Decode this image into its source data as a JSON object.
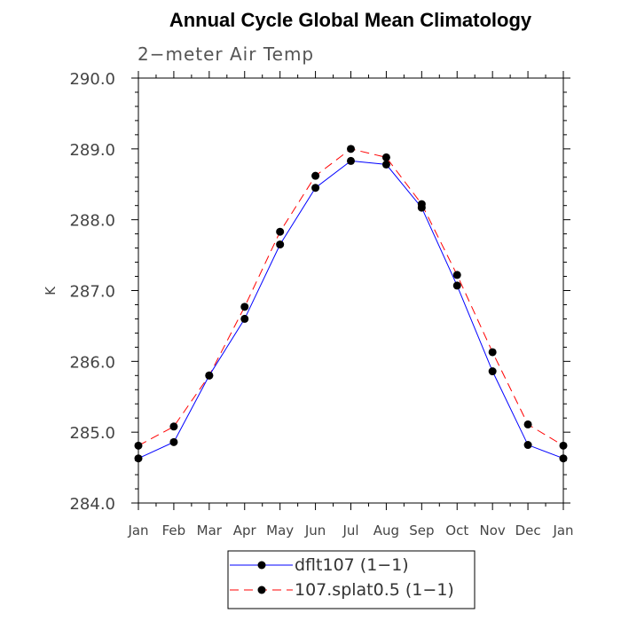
{
  "chart_data": {
    "type": "line",
    "title": "Annual Cycle Global Mean Climatology",
    "subtitle": "2−meter Air Temp",
    "xlabel": "",
    "ylabel": "K",
    "categories": [
      "Jan",
      "Feb",
      "Mar",
      "Apr",
      "May",
      "Jun",
      "Jul",
      "Aug",
      "Sep",
      "Oct",
      "Nov",
      "Dec",
      "Jan"
    ],
    "ylim": [
      284.0,
      290.0
    ],
    "yticks": [
      "284.0",
      "285.0",
      "286.0",
      "287.0",
      "288.0",
      "289.0",
      "290.0"
    ],
    "grid": false,
    "legend_position": "bottom-center",
    "series": [
      {
        "name": "dflt107 (1−1)",
        "color": "#0000ff",
        "style": "solid",
        "values": [
          284.63,
          284.86,
          285.8,
          286.6,
          287.65,
          288.45,
          288.83,
          288.78,
          288.17,
          287.07,
          285.86,
          284.82,
          284.63
        ]
      },
      {
        "name": "107.splat0.5 (1−1)",
        "color": "#ff0000",
        "style": "dashed",
        "values": [
          284.81,
          285.08,
          285.8,
          286.77,
          287.83,
          288.62,
          289.0,
          288.88,
          288.22,
          287.22,
          286.13,
          285.11,
          284.81
        ]
      }
    ]
  }
}
